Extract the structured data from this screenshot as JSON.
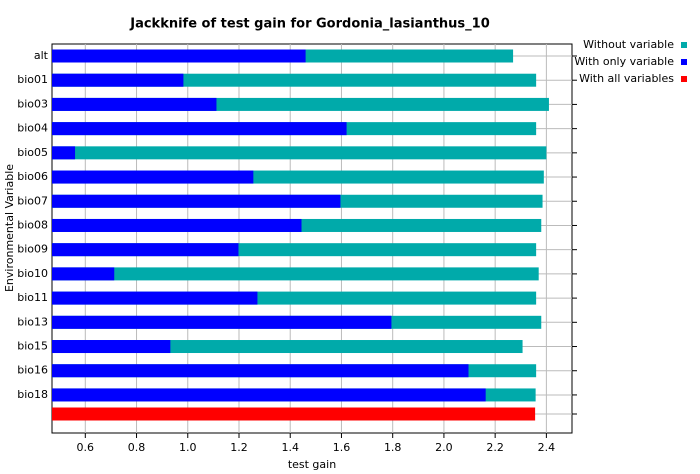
{
  "chart_data": {
    "type": "bar",
    "orientation": "horizontal",
    "title": "Jackknife of test gain for Gordonia_lasianthus_10",
    "xlabel": "test gain",
    "ylabel": "Environmental Variable",
    "categories": [
      "alt",
      "bio01",
      "bio03",
      "bio04",
      "bio05",
      "bio06",
      "bio07",
      "bio08",
      "bio09",
      "bio10",
      "bio11",
      "bio13",
      "bio15",
      "bio16",
      "bio18",
      null
    ],
    "series": [
      {
        "name": "Without variable",
        "color": "#00aaaa",
        "values": [
          2.27,
          2.36,
          2.41,
          2.36,
          2.4,
          2.39,
          2.385,
          2.38,
          2.36,
          2.37,
          2.36,
          2.38,
          2.307,
          2.36,
          2.358,
          null
        ]
      },
      {
        "name": "With only variable",
        "color": "#0000ff",
        "values": [
          1.46,
          0.983,
          1.112,
          1.62,
          0.56,
          1.256,
          1.596,
          1.444,
          1.198,
          0.713,
          1.272,
          1.795,
          0.932,
          2.096,
          2.163,
          null
        ]
      },
      {
        "name": "With all variables",
        "color": "#ff0000",
        "values": [
          null,
          null,
          null,
          null,
          null,
          null,
          null,
          null,
          null,
          null,
          null,
          null,
          null,
          null,
          null,
          2.356
        ]
      }
    ],
    "xlim": [
      0.47,
      2.5
    ],
    "xticks": [
      {
        "value": 0.6,
        "label": "0.6"
      },
      {
        "value": 0.8,
        "label": "0.8"
      },
      {
        "value": 1.0,
        "label": "1.0"
      },
      {
        "value": 1.2,
        "label": "1.2"
      },
      {
        "value": 1.4,
        "label": "1.4"
      },
      {
        "value": 1.6,
        "label": "1.6"
      },
      {
        "value": 1.8,
        "label": "1.8"
      },
      {
        "value": 2.0,
        "label": "2.0"
      },
      {
        "value": 2.2,
        "label": "2.2"
      },
      {
        "value": 2.4,
        "label": "2.4"
      }
    ],
    "grid": true,
    "legend": "right"
  }
}
